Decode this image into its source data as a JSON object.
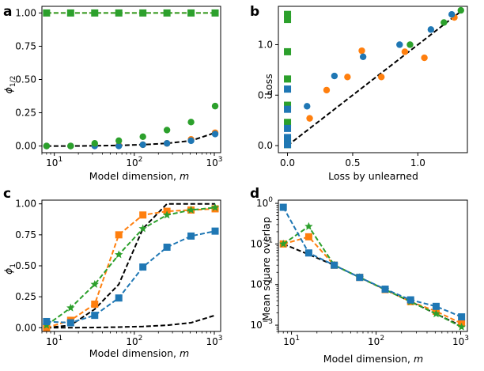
{
  "colors": {
    "blue": "#1f77b4",
    "orange": "#ff7f0e",
    "green": "#2ca02c",
    "black": "#000000"
  },
  "chart_data": [
    {
      "panel": "a",
      "type": "line",
      "xlabel_text": "Model dimension, ",
      "xlabel_var": "m",
      "ylabel_base": "ϕ",
      "ylabel_sub": "1/2",
      "xscale": "log",
      "xlim": [
        7,
        1200
      ],
      "ylim": [
        -0.05,
        1.05
      ],
      "x_ticks": [
        {
          "v": 10,
          "base": "10",
          "exp": "1"
        },
        {
          "v": 100,
          "base": "10",
          "exp": "2"
        },
        {
          "v": 1000,
          "base": "10",
          "exp": "3"
        }
      ],
      "y_ticks": [
        {
          "v": 0,
          "label": "0.00"
        },
        {
          "v": 0.25,
          "label": "0.25"
        },
        {
          "v": 0.5,
          "label": "0.50"
        },
        {
          "v": 0.75,
          "label": "0.75"
        },
        {
          "v": 1,
          "label": "1.00"
        }
      ],
      "series": [
        {
          "name": "black dashed",
          "color": "black",
          "line": "dashed",
          "marker": "none",
          "x": [
            8,
            16,
            32,
            64,
            128,
            256,
            512,
            1024
          ],
          "y": [
            0.0,
            0.0,
            0.002,
            0.005,
            0.01,
            0.02,
            0.04,
            0.1
          ]
        },
        {
          "name": "orange dashed",
          "color": "orange",
          "line": "dashed",
          "marker": "circle",
          "x": [
            8,
            16,
            32,
            64,
            128,
            256,
            512,
            1024
          ],
          "y": [
            1,
            1,
            1,
            1,
            1,
            1,
            1,
            1
          ]
        },
        {
          "name": "orange dots",
          "color": "orange",
          "line": "none",
          "marker": "circle",
          "x": [
            8,
            16,
            32,
            64,
            128,
            256,
            512,
            1024
          ],
          "y": [
            0.0,
            0.0,
            0.005,
            0.005,
            0.01,
            0.02,
            0.05,
            0.1
          ]
        },
        {
          "name": "blue dots",
          "color": "blue",
          "line": "none",
          "marker": "circle",
          "x": [
            8,
            16,
            32,
            64,
            128,
            256,
            512,
            1024
          ],
          "y": [
            0.0,
            0.0,
            0.0,
            0.0,
            0.01,
            0.02,
            0.04,
            0.09
          ]
        },
        {
          "name": "green dots",
          "color": "green",
          "line": "none",
          "marker": "circle",
          "x": [
            8,
            16,
            32,
            64,
            128,
            256,
            512,
            1024
          ],
          "y": [
            0.0,
            0.0,
            0.02,
            0.04,
            0.07,
            0.12,
            0.18,
            0.3
          ]
        },
        {
          "name": "green squares",
          "color": "green",
          "line": "dashed",
          "marker": "square",
          "x": [
            8,
            16,
            32,
            64,
            128,
            256,
            512,
            1024
          ],
          "y": [
            1,
            1,
            1,
            1,
            1,
            1,
            1,
            1
          ]
        }
      ]
    },
    {
      "panel": "b",
      "type": "scatter",
      "xlabel_text": "Loss by unlearned",
      "xlabel_var": "",
      "ylabel_base": "Loss",
      "ylabel_sub": "",
      "xscale": "linear",
      "xlim": [
        -0.07,
        1.38
      ],
      "ylim": [
        -0.07,
        1.38
      ],
      "x_ticks": [
        {
          "v": 0,
          "label": "0.0"
        },
        {
          "v": 0.5,
          "label": "0.5"
        },
        {
          "v": 1,
          "label": "1.0"
        }
      ],
      "y_ticks": [
        {
          "v": 0,
          "label": "0.0"
        },
        {
          "v": 0.5,
          "label": "0.5"
        },
        {
          "v": 1,
          "label": "1.0"
        }
      ],
      "series": [
        {
          "name": "diagonal",
          "color": "black",
          "line": "dashed",
          "marker": "none",
          "x": [
            0,
            1.33
          ],
          "y": [
            0,
            1.33
          ]
        },
        {
          "name": "green squares",
          "color": "green",
          "line": "none",
          "marker": "square",
          "x": [
            0,
            0,
            0,
            0,
            0,
            0,
            0,
            0
          ],
          "y": [
            1.3,
            1.25,
            0.93,
            0.66,
            0.4,
            0.23,
            0.07,
            0.01
          ]
        },
        {
          "name": "blue squares",
          "color": "blue",
          "line": "none",
          "marker": "square",
          "x": [
            0,
            0,
            0,
            0,
            0
          ],
          "y": [
            0.56,
            0.36,
            0.17,
            0.08,
            0.01
          ]
        },
        {
          "name": "orange dots",
          "color": "orange",
          "line": "none",
          "marker": "circle",
          "x": [
            0.17,
            0.3,
            0.46,
            0.57,
            0.72,
            0.9,
            1.05,
            1.28
          ],
          "y": [
            0.27,
            0.55,
            0.68,
            0.94,
            0.68,
            0.93,
            0.87,
            1.27
          ]
        },
        {
          "name": "blue dots",
          "color": "blue",
          "line": "none",
          "marker": "circle",
          "x": [
            0.15,
            0.36,
            0.58,
            0.86,
            1.1,
            1.26
          ],
          "y": [
            0.39,
            0.69,
            0.88,
            1.0,
            1.15,
            1.3
          ]
        },
        {
          "name": "green dots",
          "color": "green",
          "line": "none",
          "marker": "circle",
          "x": [
            0.94,
            1.2,
            1.33
          ],
          "y": [
            1.0,
            1.22,
            1.34
          ]
        }
      ]
    },
    {
      "panel": "c",
      "type": "line",
      "xlabel_text": "Model dimension, ",
      "xlabel_var": "m",
      "ylabel_base": "ϕ",
      "ylabel_sub": "1",
      "xscale": "log",
      "xlim": [
        7,
        1200
      ],
      "ylim": [
        -0.03,
        1.03
      ],
      "x_ticks": [
        {
          "v": 10,
          "base": "10",
          "exp": "1"
        },
        {
          "v": 100,
          "base": "10",
          "exp": "2"
        },
        {
          "v": 1000,
          "base": "10",
          "exp": "3"
        }
      ],
      "y_ticks": [
        {
          "v": 0,
          "label": "0.00"
        },
        {
          "v": 0.25,
          "label": "0.25"
        },
        {
          "v": 0.5,
          "label": "0.50"
        },
        {
          "v": 0.75,
          "label": "0.75"
        },
        {
          "v": 1,
          "label": "1.00"
        }
      ],
      "series": [
        {
          "name": "black dashed upper",
          "color": "black",
          "line": "dashed",
          "marker": "none",
          "x": [
            8,
            16,
            32,
            64,
            128,
            256,
            512,
            1024
          ],
          "y": [
            0.0,
            0.02,
            0.15,
            0.35,
            0.8,
            1.0,
            1.0,
            1.0
          ]
        },
        {
          "name": "black dashed lower",
          "color": "black",
          "line": "dashed",
          "marker": "none",
          "x": [
            8,
            16,
            32,
            64,
            128,
            256,
            512,
            1024
          ],
          "y": [
            0.0,
            0.0,
            0.002,
            0.005,
            0.01,
            0.02,
            0.04,
            0.1
          ]
        },
        {
          "name": "orange",
          "color": "orange",
          "line": "dashed",
          "marker": "square",
          "x": [
            8,
            16,
            32,
            64,
            128,
            256,
            512,
            1024
          ],
          "y": [
            0.0,
            0.06,
            0.19,
            0.75,
            0.91,
            0.94,
            0.95,
            0.96
          ]
        },
        {
          "name": "green",
          "color": "green",
          "line": "dashed",
          "marker": "star",
          "x": [
            8,
            16,
            32,
            64,
            128,
            256,
            512,
            1024
          ],
          "y": [
            0.02,
            0.16,
            0.35,
            0.59,
            0.8,
            0.91,
            0.95,
            0.97
          ]
        },
        {
          "name": "blue",
          "color": "blue",
          "line": "dashed",
          "marker": "square",
          "x": [
            8,
            16,
            32,
            64,
            128,
            256,
            512,
            1024
          ],
          "y": [
            0.05,
            0.04,
            0.1,
            0.24,
            0.49,
            0.65,
            0.74,
            0.78
          ]
        }
      ]
    },
    {
      "panel": "d",
      "type": "line",
      "xlabel_text": "Model dimension, ",
      "xlabel_var": "m",
      "ylabel_base": "Mean square overlap",
      "ylabel_sub": "",
      "xscale": "log",
      "yscale": "log",
      "xlim": [
        7,
        1200
      ],
      "ylim": [
        0.0007,
        1.2
      ],
      "x_ticks": [
        {
          "v": 10,
          "base": "10",
          "exp": "1"
        },
        {
          "v": 100,
          "base": "10",
          "exp": "2"
        },
        {
          "v": 1000,
          "base": "10",
          "exp": "3"
        }
      ],
      "y_ticks": [
        {
          "v": 0.001,
          "base": "10",
          "exp": "−3"
        },
        {
          "v": 0.01,
          "base": "10",
          "exp": "−2"
        },
        {
          "v": 0.1,
          "base": "10",
          "exp": "−1"
        },
        {
          "v": 1,
          "base": "10",
          "exp": "0"
        }
      ],
      "series": [
        {
          "name": "black",
          "color": "black",
          "line": "dashed",
          "marker": "none",
          "x": [
            8,
            16,
            32,
            64,
            128,
            256,
            512,
            1024
          ],
          "y": [
            0.1,
            0.055,
            0.03,
            0.015,
            0.0075,
            0.0038,
            0.0019,
            0.00095
          ]
        },
        {
          "name": "orange",
          "color": "orange",
          "line": "dashed",
          "marker": "square",
          "x": [
            8,
            16,
            32,
            64,
            128,
            256,
            512,
            1024
          ],
          "y": [
            0.1,
            0.15,
            0.03,
            0.015,
            0.0075,
            0.0038,
            0.0022,
            0.0011
          ]
        },
        {
          "name": "green",
          "color": "green",
          "line": "dashed",
          "marker": "star",
          "x": [
            8,
            16,
            32,
            64,
            128,
            256,
            512,
            1024
          ],
          "y": [
            0.1,
            0.27,
            0.03,
            0.015,
            0.0075,
            0.0038,
            0.0019,
            0.0009
          ]
        },
        {
          "name": "blue",
          "color": "blue",
          "line": "dashed",
          "marker": "square",
          "x": [
            8,
            16,
            32,
            64,
            128,
            256,
            512,
            1024
          ],
          "y": [
            0.8,
            0.06,
            0.03,
            0.015,
            0.0077,
            0.0042,
            0.0029,
            0.0016
          ]
        }
      ]
    }
  ]
}
